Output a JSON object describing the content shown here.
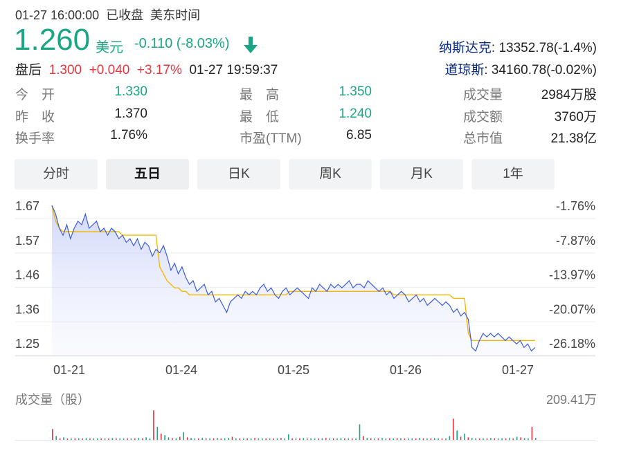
{
  "header": {
    "datetime": "01-27 16:00:00",
    "status": "已收盘",
    "timezone": "美东时间"
  },
  "quote": {
    "price": "1.260",
    "currency": "美元",
    "change": "-0.110",
    "change_pct": "(-8.03%)",
    "arrow": "arrow-down-icon",
    "afterhours_label": "盘后",
    "afterhours_price": "1.300",
    "afterhours_change": "+0.040",
    "afterhours_pct": "+3.17%",
    "afterhours_time": "01-27 19:59:37"
  },
  "indices": [
    {
      "name": "纳斯达克",
      "value": ": 13352.78(-1.4%)"
    },
    {
      "name": "道琼斯",
      "value": ": 34160.78(-0.02%)"
    }
  ],
  "stats": {
    "open_label": "今　开",
    "open": "1.330",
    "prev_label": "昨　收",
    "prev": "1.370",
    "turnover_label": "换手率",
    "turnover": "1.76%",
    "high_label": "最　高",
    "high": "1.350",
    "low_label": "最　低",
    "low": "1.240",
    "pe_label": "市盈(TTM)",
    "pe": "6.85",
    "vol_label": "成交量",
    "vol": "2984万股",
    "amount_label": "成交额",
    "amount": "3760万",
    "mcap_label": "总市值",
    "mcap": "21.38亿"
  },
  "tabs": [
    {
      "label": "分时",
      "active": false
    },
    {
      "label": "五日",
      "active": true
    },
    {
      "label": "日K",
      "active": false
    },
    {
      "label": "周K",
      "active": false
    },
    {
      "label": "月K",
      "active": false
    },
    {
      "label": "1年",
      "active": false
    }
  ],
  "colors": {
    "up": "#e8323c",
    "down": "#1aa585",
    "price_line": "#3b5bdb",
    "avg_line": "#f5b800"
  },
  "chart_data": {
    "type": "line",
    "y_ticks_left": [
      "1.67",
      "1.57",
      "1.46",
      "1.36",
      "1.25"
    ],
    "y_ticks_right": [
      "-1.76%",
      "-7.87%",
      "-13.97%",
      "-20.07%",
      "-26.18%"
    ],
    "x_ticks": [
      "01-21",
      "01-24",
      "01-25",
      "01-26",
      "01-27"
    ],
    "ylim": [
      1.245,
      1.665
    ],
    "series": [
      {
        "values": [
          1.665,
          1.64,
          1.6,
          1.58,
          1.61,
          1.57,
          1.6,
          1.62,
          1.61,
          1.64,
          1.6,
          1.61,
          1.62,
          1.59,
          1.6,
          1.58,
          1.6,
          1.59,
          1.57,
          1.58,
          1.56,
          1.57,
          1.55,
          1.57,
          1.54,
          1.56,
          1.55,
          1.52,
          1.54,
          1.53,
          1.55,
          1.52,
          1.48,
          1.5,
          1.47,
          1.49,
          1.46,
          1.44,
          1.45,
          1.42,
          1.43,
          1.44,
          1.41,
          1.42,
          1.39,
          1.4,
          1.38,
          1.36,
          1.39,
          1.4,
          1.41,
          1.4,
          1.42,
          1.41,
          1.42,
          1.41,
          1.43,
          1.44,
          1.42,
          1.43,
          1.41,
          1.4,
          1.42,
          1.43,
          1.41,
          1.42,
          1.43,
          1.42,
          1.41,
          1.4,
          1.43,
          1.42,
          1.44,
          1.43,
          1.42,
          1.44,
          1.43,
          1.44,
          1.43,
          1.44,
          1.45,
          1.43,
          1.44,
          1.44,
          1.43,
          1.45,
          1.44,
          1.43,
          1.42,
          1.43,
          1.41,
          1.42,
          1.4,
          1.41,
          1.42,
          1.41,
          1.39,
          1.4,
          1.41,
          1.39,
          1.4,
          1.38,
          1.39,
          1.4,
          1.39,
          1.38,
          1.39,
          1.38,
          1.36,
          1.37,
          1.35,
          1.36,
          1.34,
          1.26,
          1.25,
          1.28,
          1.3,
          1.29,
          1.3,
          1.29,
          1.3,
          1.29,
          1.28,
          1.29,
          1.28,
          1.27,
          1.28,
          1.26,
          1.27,
          1.25,
          1.26
        ]
      },
      {
        "values": [
          1.665,
          1.62,
          1.6,
          1.59,
          1.59,
          1.59,
          1.59,
          1.59,
          1.59,
          1.59,
          1.59,
          1.59,
          1.59,
          1.59,
          1.59,
          1.59,
          1.59,
          1.59,
          1.59,
          1.58,
          1.58,
          1.58,
          1.58,
          1.58,
          1.58,
          1.58,
          1.58,
          1.58,
          1.58,
          1.49,
          1.47,
          1.45,
          1.44,
          1.43,
          1.43,
          1.42,
          1.42,
          1.41,
          1.41,
          1.41,
          1.41,
          1.41,
          1.41,
          1.41,
          1.41,
          1.41,
          1.41,
          1.41,
          1.41,
          1.41,
          1.41,
          1.41,
          1.41,
          1.41,
          1.41,
          1.41,
          1.41,
          1.41,
          1.41,
          1.41,
          1.41,
          1.41,
          1.41,
          1.41,
          1.42,
          1.42,
          1.42,
          1.42,
          1.42,
          1.42,
          1.42,
          1.42,
          1.42,
          1.42,
          1.42,
          1.42,
          1.42,
          1.42,
          1.42,
          1.42,
          1.42,
          1.42,
          1.42,
          1.42,
          1.42,
          1.42,
          1.42,
          1.42,
          1.42,
          1.42,
          1.42,
          1.42,
          1.41,
          1.41,
          1.41,
          1.41,
          1.41,
          1.41,
          1.41,
          1.41,
          1.41,
          1.41,
          1.41,
          1.41,
          1.41,
          1.41,
          1.41,
          1.41,
          1.4,
          1.4,
          1.4,
          1.4,
          1.3,
          1.28,
          1.28,
          1.28,
          1.28,
          1.28,
          1.28,
          1.28,
          1.28,
          1.28,
          1.28,
          1.28,
          1.28,
          1.28,
          1.28,
          1.28,
          1.28,
          1.28,
          1.28
        ]
      }
    ]
  },
  "volume": {
    "label": "成交量（股）",
    "max": "209.41万",
    "values": [
      0.35,
      0.12,
      0.05,
      0.08,
      0.04,
      0.03,
      0.05,
      0.04,
      0.03,
      0.06,
      0.04,
      0.05,
      0.03,
      0.04,
      0.05,
      0.03,
      0.06,
      0.04,
      0.03,
      0.04,
      0.05,
      0.03,
      0.04,
      0.06,
      0.05,
      0.08,
      0.05,
      0.95,
      0.42,
      0.2,
      0.15,
      0.08,
      0.06,
      0.05,
      0.1,
      0.25,
      0.08,
      0.06,
      0.05,
      0.04,
      0.06,
      0.05,
      0.04,
      0.05,
      0.06,
      0.04,
      0.05,
      0.06,
      0.1,
      0.05,
      0.04,
      0.03,
      0.05,
      0.04,
      0.06,
      0.05,
      0.05,
      0.04,
      0.03,
      0.04,
      0.05,
      0.06,
      0.05,
      0.18,
      0.05,
      0.04,
      0.05,
      0.06,
      0.04,
      0.05,
      0.03,
      0.04,
      0.05,
      0.06,
      0.04,
      0.05,
      0.04,
      0.06,
      0.05,
      0.04,
      0.05,
      0.04,
      0.5,
      0.12,
      0.06,
      0.05,
      0.04,
      0.05,
      0.06,
      0.04,
      0.05,
      0.04,
      0.06,
      0.05,
      0.04,
      0.03,
      0.05,
      0.04,
      0.06,
      0.05,
      0.04,
      0.05,
      0.06,
      0.05,
      0.04,
      0.05,
      0.12,
      0.68,
      0.3,
      0.1,
      0.2,
      0.08,
      0.06,
      0.05,
      0.04,
      0.05,
      0.04,
      0.06,
      0.05,
      0.04,
      0.05,
      0.04,
      0.06,
      0.05,
      0.1,
      0.08,
      0.06,
      0.05,
      0.42,
      0.06
    ],
    "up": [
      1,
      0,
      1,
      0,
      1,
      0,
      1,
      0,
      1,
      0,
      1,
      0,
      0,
      1,
      0,
      1,
      0,
      1,
      0,
      0,
      1,
      0,
      1,
      0,
      1,
      0,
      0,
      1,
      0,
      1,
      0,
      0,
      1,
      0,
      1,
      0,
      1,
      0,
      0,
      1,
      0,
      1,
      0,
      1,
      0,
      1,
      0,
      0,
      1,
      0,
      1,
      0,
      1,
      0,
      1,
      0,
      0,
      1,
      0,
      1,
      0,
      1,
      0,
      0,
      1,
      0,
      1,
      0,
      1,
      0,
      0,
      1,
      0,
      1,
      0,
      1,
      0,
      0,
      1,
      0,
      1,
      0,
      0,
      1,
      0,
      1,
      0,
      1,
      0,
      0,
      1,
      0,
      1,
      0,
      1,
      0,
      0,
      1,
      0,
      1,
      0,
      1,
      0,
      0,
      1,
      0,
      0,
      1,
      0,
      1,
      0,
      1,
      0,
      0,
      1,
      0,
      1,
      0,
      1,
      0,
      0,
      1,
      0,
      1,
      0,
      1,
      0,
      0,
      1,
      0,
      1
    ]
  }
}
